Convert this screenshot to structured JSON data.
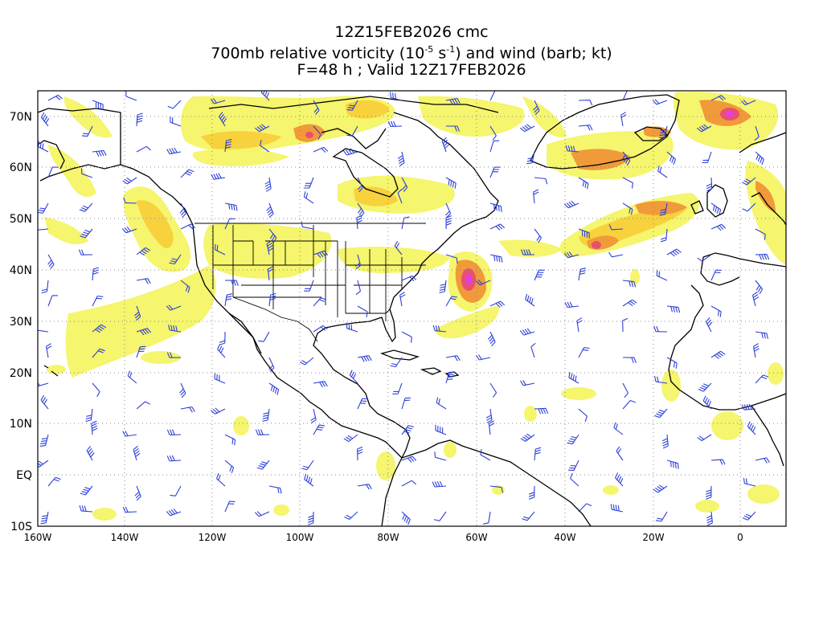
{
  "header": {
    "line1": "12Z15FEB2026 cmc",
    "line2_prefix": "700mb relative vorticity (10",
    "line2_exp1": "-5",
    "line2_mid": " s",
    "line2_exp2": "-1",
    "line2_suffix": ") and wind (barb; kt)",
    "line3": "F=48 h ; Valid 12Z17FEB2026"
  },
  "map": {
    "lat_labels": [
      "70N",
      "60N",
      "50N",
      "40N",
      "30N",
      "20N",
      "10N",
      "EQ",
      "10S"
    ],
    "lon_labels": [
      "160W",
      "140W",
      "120W",
      "100W",
      "80W",
      "60W",
      "40W",
      "20W",
      "0"
    ],
    "colors": {
      "vort_low": "#f5f56e",
      "vort_mid": "#f7d23c",
      "vort_high": "#f09a3a",
      "vort_max": "#e8506e",
      "vort_peak": "#e040e0",
      "barb": "#2b3fd6",
      "coast": "#000000",
      "grid": "#888888"
    }
  }
}
